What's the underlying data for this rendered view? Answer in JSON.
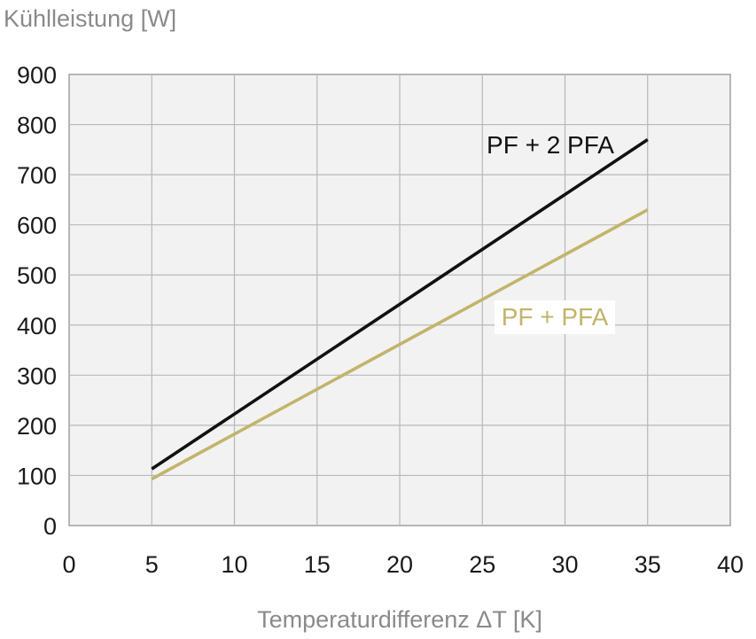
{
  "chart_data": {
    "type": "line",
    "ylabel": "Kühlleistung [W]",
    "xlabel": "Temperaturdifferenz ΔT [K]",
    "xlim": [
      0,
      40
    ],
    "ylim": [
      0,
      900
    ],
    "xticks": [
      "0",
      "5",
      "10",
      "15",
      "20",
      "25",
      "30",
      "35",
      "40"
    ],
    "yticks": [
      "0",
      "100",
      "200",
      "300",
      "400",
      "500",
      "600",
      "700",
      "800",
      "900"
    ],
    "grid": true,
    "series": [
      {
        "name": "PF + 2 PFA",
        "color": "#111111",
        "x": [
          5,
          35
        ],
        "y": [
          113,
          770
        ]
      },
      {
        "name": "PF + PFA",
        "color": "#c2b46a",
        "x": [
          5,
          35
        ],
        "y": [
          93,
          630
        ]
      }
    ]
  }
}
